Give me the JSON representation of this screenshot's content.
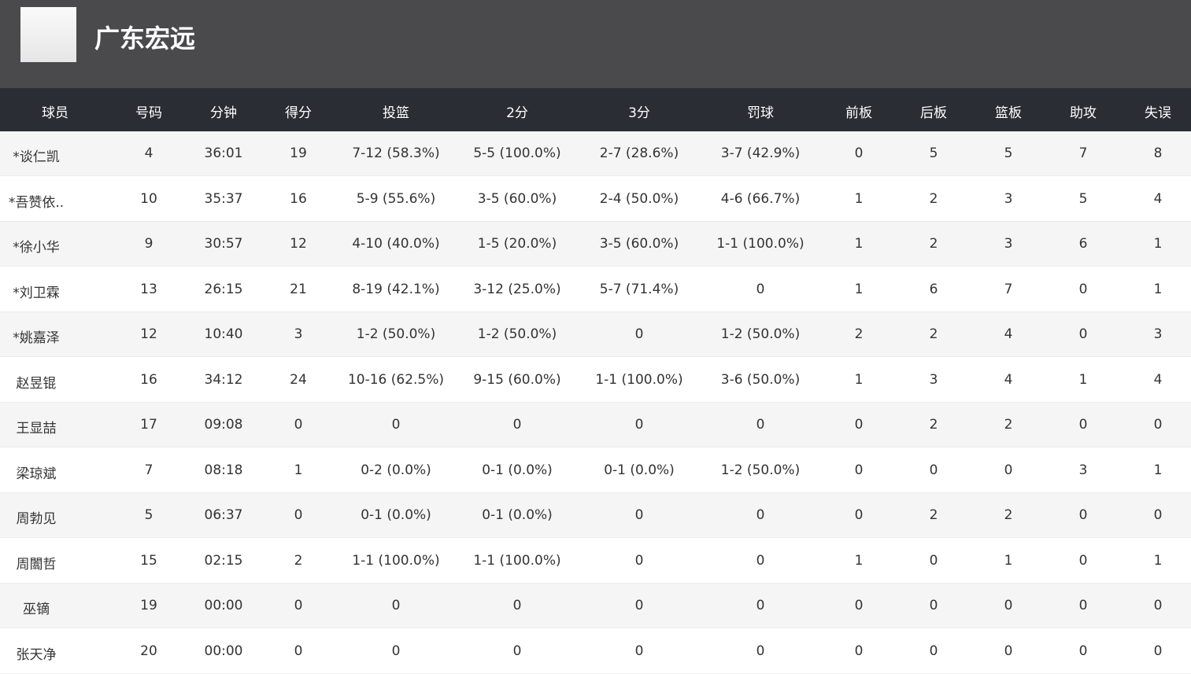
{
  "header": {
    "title": "广东宏远"
  },
  "table": {
    "columns": [
      "球员",
      "号码",
      "分钟",
      "得分",
      "投篮",
      "2分",
      "3分",
      "罚球",
      "前板",
      "后板",
      "篮板",
      "助攻",
      "失误"
    ],
    "rows": [
      [
        "*谈仁凯",
        4,
        "36:01",
        19,
        "7-12 (58.3%)",
        "5-5 (100.0%)",
        "2-7 (28.6%)",
        "3-7 (42.9%)",
        0,
        5,
        5,
        7,
        8
      ],
      [
        "*吾赞依..",
        10,
        "35:37",
        16,
        "5-9 (55.6%)",
        "3-5 (60.0%)",
        "2-4 (50.0%)",
        "4-6 (66.7%)",
        1,
        2,
        3,
        5,
        4
      ],
      [
        "*徐小华",
        9,
        "30:57",
        12,
        "4-10 (40.0%)",
        "1-5 (20.0%)",
        "3-5 (60.0%)",
        "1-1 (100.0%)",
        1,
        2,
        3,
        6,
        1
      ],
      [
        "*刘卫霖",
        13,
        "26:15",
        21,
        "8-19 (42.1%)",
        "3-12 (25.0%)",
        "5-7 (71.4%)",
        0,
        1,
        6,
        7,
        0,
        1
      ],
      [
        "*姚嘉泽",
        12,
        "10:40",
        3,
        "1-2 (50.0%)",
        "1-2 (50.0%)",
        0,
        "1-2 (50.0%)",
        2,
        2,
        4,
        0,
        3
      ],
      [
        "赵昱锟",
        16,
        "34:12",
        24,
        "10-16 (62.5%)",
        "9-15 (60.0%)",
        "1-1 (100.0%)",
        "3-6 (50.0%)",
        1,
        3,
        4,
        1,
        4
      ],
      [
        "王显喆",
        17,
        "09:08",
        0,
        0,
        0,
        0,
        0,
        0,
        2,
        2,
        0,
        0
      ],
      [
        "梁琼斌",
        7,
        "08:18",
        1,
        "0-2 (0.0%)",
        "0-1 (0.0%)",
        "0-1 (0.0%)",
        "1-2 (50.0%)",
        0,
        0,
        0,
        3,
        1
      ],
      [
        "周勃见",
        5,
        "06:37",
        0,
        "0-1 (0.0%)",
        "0-1 (0.0%)",
        0,
        0,
        0,
        2,
        2,
        0,
        0
      ],
      [
        "周闟哲",
        15,
        "02:15",
        2,
        "1-1 (100.0%)",
        "1-1 (100.0%)",
        0,
        0,
        1,
        0,
        1,
        0,
        1
      ],
      [
        "巫镝",
        19,
        "00:00",
        0,
        0,
        0,
        0,
        0,
        0,
        0,
        0,
        0,
        0
      ],
      [
        "张天净",
        20,
        "00:00",
        0,
        0,
        0,
        0,
        0,
        0,
        0,
        0,
        0,
        0
      ]
    ]
  }
}
